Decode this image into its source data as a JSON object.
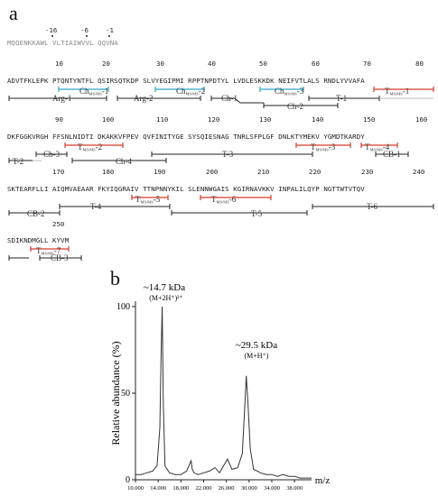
{
  "panel_a": {
    "label": "a",
    "signal": {
      "numbers": [
        "-16",
        "-6",
        "-1"
      ],
      "sequence": "MQQENKKAWL VLTIAIWVVL QQVNA"
    },
    "row1": {
      "numbers": [
        "10",
        "20",
        "30",
        "40",
        "50",
        "60",
        "70",
        "80"
      ],
      "sequence": "ADVTFKLEPK PTQNTYNTFL QSIRSQTKDP SLVYEGIPMI RPPTNPDTYL LVDLESKKDK NEIFVTLALS RNDLYVVAFA",
      "annotations": [
        "Arg-1",
        "Ch_MS/MS-1",
        "Arg-2",
        "Ch_MS/MS-2",
        "Ch-1",
        "Ch_MS/MS-3",
        "Ch-2",
        "T-1",
        "T_MS/MS-1"
      ]
    },
    "row2": {
      "numbers": [
        "90",
        "100",
        "110",
        "120",
        "130",
        "140",
        "150",
        "160"
      ],
      "sequence": "DKFGGKVRGH FFSNLNIDTI DKAKKVFPEV QVFINITYGE SYSQIESNAG TNRLSFPLGF DNLKTYMEKV YGMDTKARDY",
      "annotations": [
        "T-2",
        "Ch-3",
        "T_MS/MS-2",
        "Ch-4",
        "T-3",
        "T_MS/MS-3",
        "T_MS/MS-4",
        "CB-1"
      ]
    },
    "row3": {
      "numbers": [
        "170",
        "180",
        "190",
        "200",
        "210",
        "220",
        "230",
        "240"
      ],
      "sequence": "SKTEARFLLI AIQMVAEAAR FKYIQGRAIV TTNPNNYKIL SLENNWGAIS KGIRNAVKKV INPALILQYP NGTTWTVTQV",
      "annotations": [
        "CB-2",
        "T-4",
        "T_MS/MS-5",
        "T_MS/MS-6",
        "T-5",
        "T-6"
      ]
    },
    "row4": {
      "numbers": [
        "250"
      ],
      "sequence": "SDIKNDMGLL KYVM",
      "annotations": [
        "T_MS/MS-7",
        "CB-3"
      ]
    }
  },
  "panel_b": {
    "label": "b",
    "ylabel": "Relative abundance (%)",
    "xlabel": "m/z",
    "yticks": [
      "0",
      "50",
      "100"
    ],
    "xticks": [
      "10.000",
      "14.000",
      "18.000",
      "22.000",
      "26.000",
      "30.000",
      "34.000",
      "38.000"
    ],
    "peak1_label": "~14.7 kDa",
    "peak1_ion": "(M+2H⁺)²⁺",
    "peak2_label": "~29.5 kDa",
    "peak2_ion": "(M+H⁺)"
  },
  "chart_data": {
    "type": "line",
    "xlabel": "m/z",
    "ylabel": "Relative abundance (%)",
    "xlim": [
      10000,
      41000
    ],
    "ylim": [
      0,
      100
    ],
    "series": [
      {
        "x": [
          10000,
          11000,
          12000,
          13000,
          13800,
          14300,
          14500,
          14700,
          14900,
          15200,
          16000,
          17000,
          18000,
          19000,
          19800,
          20000,
          20300,
          21000,
          22000,
          23000,
          24000,
          24800,
          25500,
          26200,
          27000,
          28000,
          28800,
          29200,
          29500,
          29800,
          30200,
          30800,
          31500,
          32000,
          33000,
          34000,
          35000,
          36000,
          37000,
          38000,
          39000,
          40000,
          41000
        ],
        "y": [
          3,
          3,
          4,
          5,
          8,
          30,
          70,
          100,
          45,
          8,
          4,
          3,
          3,
          5,
          11,
          6,
          4,
          3,
          4,
          5,
          7,
          4,
          8,
          12,
          6,
          7,
          15,
          40,
          60,
          45,
          18,
          6,
          5,
          4,
          3,
          3,
          2,
          3,
          2,
          2,
          1,
          1,
          1
        ]
      }
    ]
  }
}
